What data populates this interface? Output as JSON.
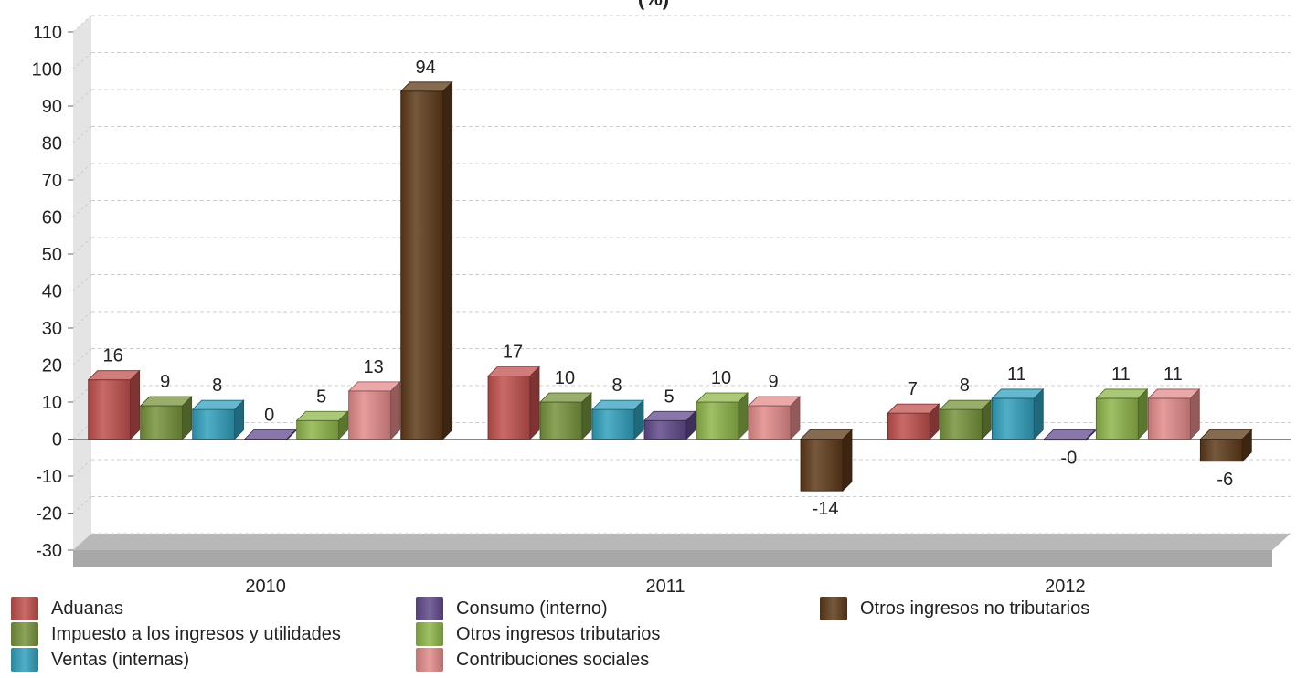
{
  "chart_data": {
    "type": "bar",
    "title": "(%)",
    "categories": [
      "2010",
      "2011",
      "2012"
    ],
    "ylim": [
      -30,
      110
    ],
    "yticks": [
      -30,
      -20,
      -10,
      0,
      10,
      20,
      30,
      40,
      50,
      60,
      70,
      80,
      90,
      100,
      110
    ],
    "ytick_labels": [
      "-30",
      "-20",
      "-10",
      "0",
      "10",
      "20",
      "30",
      "40",
      "50",
      "60",
      "70",
      "80",
      "90",
      "100",
      "110"
    ],
    "grid": true,
    "legend_position": "bottom",
    "series": [
      {
        "name": "Aduanas",
        "color": "#c0504d",
        "values": [
          16,
          17,
          7
        ],
        "labels": [
          "16",
          "17",
          "7"
        ]
      },
      {
        "name": "Impuesto a los ingresos y utilidades",
        "color": "#77933c",
        "values": [
          9,
          10,
          8
        ],
        "labels": [
          "9",
          "10",
          "8"
        ]
      },
      {
        "name": "Ventas (internas)",
        "color": "#31a0bd",
        "values": [
          8,
          8,
          11
        ],
        "labels": [
          "8",
          "8",
          "11"
        ]
      },
      {
        "name": "Consumo (interno)",
        "color": "#604a8b",
        "values": [
          0,
          5,
          -0.3
        ],
        "labels": [
          "0",
          "5",
          "-0"
        ]
      },
      {
        "name": "Otros ingresos tributarios",
        "color": "#8eb54a",
        "values": [
          5,
          10,
          11
        ],
        "labels": [
          "5",
          "10",
          "11"
        ]
      },
      {
        "name": "Contribuciones sociales",
        "color": "#e38b8b",
        "values": [
          13,
          9,
          11
        ],
        "labels": [
          "13",
          "9",
          "11"
        ]
      },
      {
        "name": "Otros ingresos no tributarios",
        "color": "#5e3a1a",
        "values": [
          94,
          -14,
          -6
        ],
        "labels": [
          "94",
          "-14",
          "-6"
        ]
      }
    ]
  }
}
